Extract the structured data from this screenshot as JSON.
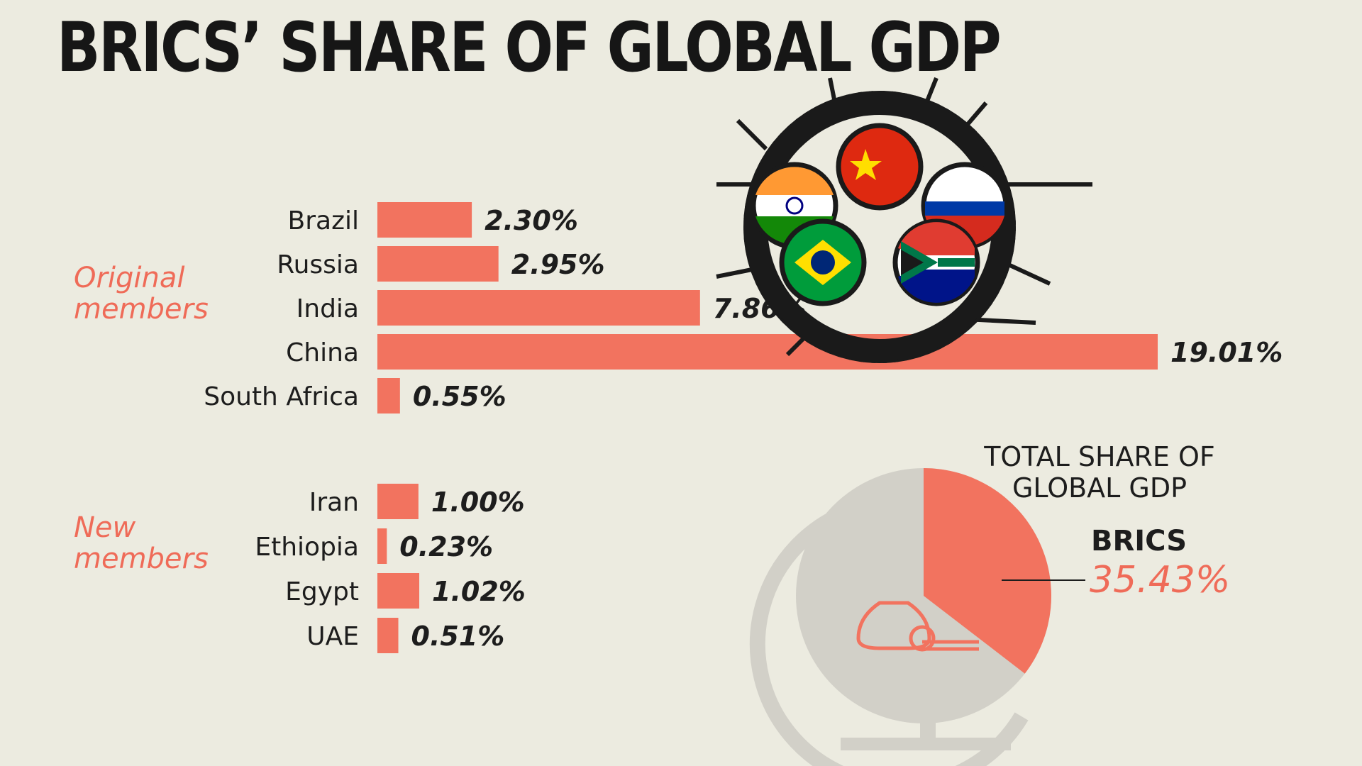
{
  "title": "BRICS’ SHARE OF  GLOBAL GDP",
  "colors": {
    "bar": "#f2735f",
    "accent": "#ef6b58",
    "globe": "#d2d0c8"
  },
  "icons": [
    "flag-wheel-icon",
    "globe-icon",
    "money-bag-icon"
  ],
  "chart_data": [
    {
      "type": "bar",
      "orientation": "horizontal",
      "groups": [
        {
          "label": "Original\nmembers",
          "categories": [
            "Brazil",
            "Russia",
            "India",
            "China",
            "South Africa"
          ],
          "values": [
            2.3,
            2.95,
            7.86,
            19.01,
            0.55
          ],
          "value_labels": [
            "2.30%",
            "2.95%",
            "7.86%",
            "19.01%",
            "0.55%"
          ]
        },
        {
          "label": "New\nmembers",
          "categories": [
            "Iran",
            "Ethiopia",
            "Egypt",
            "UAE"
          ],
          "values": [
            1.0,
            0.23,
            1.02,
            0.51
          ],
          "value_labels": [
            "1.00%",
            "0.23%",
            "1.02%",
            "0.51%"
          ]
        }
      ],
      "unit": "%",
      "grid": false
    },
    {
      "type": "pie",
      "title": "TOTAL SHARE OF\nGLOBAL GDP",
      "slices": [
        {
          "name": "BRICS",
          "value": 35.43,
          "value_label": "35.43%"
        }
      ],
      "total": 100
    }
  ]
}
